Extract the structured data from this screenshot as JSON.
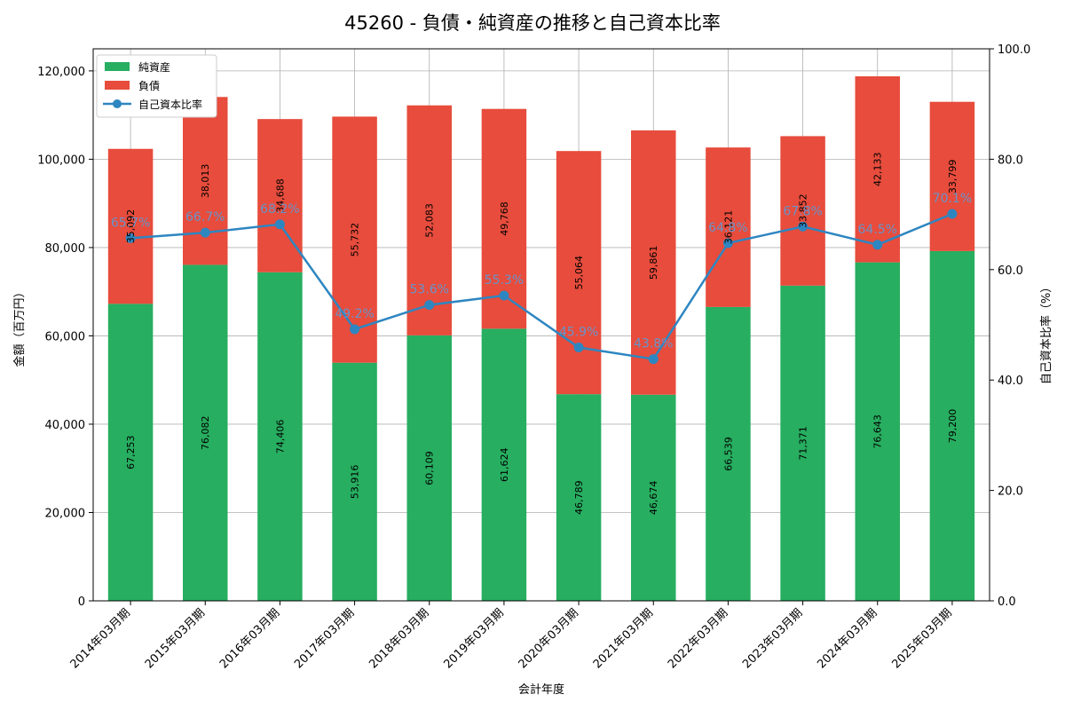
{
  "chart_data": {
    "type": "bar",
    "stacked": true,
    "title": "45260 - 負債・純資産の推移と自己資本比率",
    "xlabel": "会計年度",
    "ylabel": "金額（百万円）",
    "y2label": "自己資本比率（%）",
    "ylim": [
      0,
      125000
    ],
    "y2lim": [
      0,
      100
    ],
    "yticks": [
      0,
      20000,
      40000,
      60000,
      80000,
      100000,
      120000
    ],
    "yticks_labels": [
      "0",
      "20,000",
      "40,000",
      "60,000",
      "80,000",
      "100,000",
      "120,000"
    ],
    "y2ticks": [
      0,
      20,
      40,
      60,
      80,
      100
    ],
    "y2ticks_labels": [
      "0.0",
      "20.0",
      "40.0",
      "60.0",
      "80.0",
      "100.0"
    ],
    "grid": true,
    "legend_position": "top-left",
    "categories": [
      "2014年03月期",
      "2015年03月期",
      "2016年03月期",
      "2017年03月期",
      "2018年03月期",
      "2019年03月期",
      "2020年03月期",
      "2021年03月期",
      "2022年03月期",
      "2023年03月期",
      "2024年03月期",
      "2025年03月期"
    ],
    "series": [
      {
        "name": "純資産",
        "type": "bar",
        "color": "#27ae60",
        "values": [
          67253,
          76082,
          74406,
          53916,
          60109,
          61624,
          46789,
          46674,
          66539,
          71371,
          76643,
          79200
        ],
        "labels": [
          "67,253",
          "76,082",
          "74,406",
          "53,916",
          "60,109",
          "61,624",
          "46,789",
          "46,674",
          "66,539",
          "71,371",
          "76,643",
          "79,200"
        ]
      },
      {
        "name": "負債",
        "type": "bar",
        "color": "#e74c3c",
        "values": [
          35092,
          38013,
          34688,
          55732,
          52083,
          49768,
          55064,
          59861,
          36121,
          33852,
          42133,
          33799
        ],
        "labels": [
          "35,092",
          "38,013",
          "34,688",
          "55,732",
          "52,083",
          "49,768",
          "55,064",
          "59,861",
          "36,121",
          "33,852",
          "42,133",
          "33,799"
        ]
      },
      {
        "name": "自己資本比率",
        "type": "line",
        "axis": "right",
        "color": "#2e86c1",
        "values": [
          65.7,
          66.7,
          68.2,
          49.2,
          53.6,
          55.3,
          45.9,
          43.8,
          64.8,
          67.8,
          64.5,
          70.1
        ],
        "labels": [
          "65.7%",
          "66.7%",
          "68.2%",
          "49.2%",
          "53.6%",
          "55.3%",
          "45.9%",
          "43.8%",
          "64.8%",
          "67.8%",
          "64.5%",
          "70.1%"
        ]
      }
    ]
  }
}
